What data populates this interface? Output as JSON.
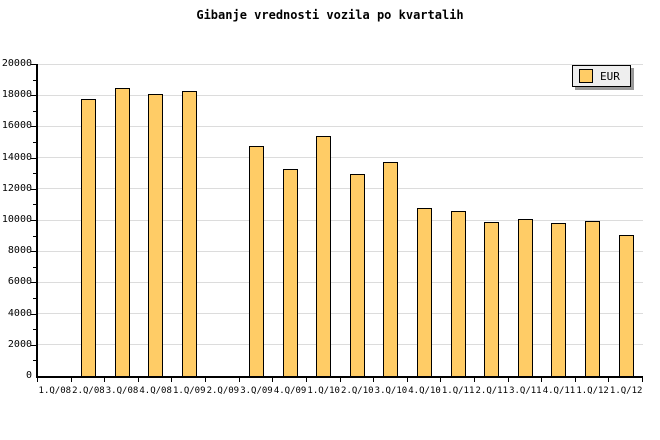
{
  "title": "Gibanje vrednosti vozila po kvartalih",
  "legend": {
    "position": "top-right",
    "items": [
      {
        "label": "EUR",
        "swatch_color": "#FFCC66"
      }
    ]
  },
  "colors": {
    "bar_fill": "#FFCC66",
    "bar_border": "#000000",
    "gridline": "#DCDCDC",
    "axis": "#000000",
    "legend_bg": "#EEEEEE",
    "legend_shadow": "#999999",
    "background": "#FFFFFF"
  },
  "chart_data": {
    "type": "bar",
    "title": "Gibanje vrednosti vozila po kvartalih",
    "xlabel": "",
    "ylabel": "",
    "categories": [
      "1.Q/08",
      "2.Q/08",
      "3.Q/08",
      "4.Q/08",
      "1.Q/09",
      "2.Q/09",
      "3.Q/09",
      "4.Q/09",
      "1.Q/10",
      "2.Q/10",
      "3.Q/10",
      "4.Q/10",
      "1.Q/11",
      "2.Q/11",
      "3.Q/11",
      "4.Q/11",
      "1.Q/12",
      "1.Q/12"
    ],
    "series": [
      {
        "name": "EUR",
        "values": [
          null,
          17750,
          18450,
          18100,
          18300,
          null,
          14750,
          13250,
          15400,
          12950,
          13700,
          10750,
          10550,
          9850,
          10050,
          9800,
          9950,
          9050
        ]
      }
    ],
    "ylim": [
      0,
      20000
    ],
    "y_major_step": 2000,
    "y_minor_step": 1000,
    "y_tick_labels": [
      "0",
      "2000",
      "4000",
      "6000",
      "8000",
      "10000",
      "12000",
      "14000",
      "16000",
      "18000",
      "20000"
    ],
    "grid": "horizontal-major",
    "legend_position": "top-right"
  }
}
